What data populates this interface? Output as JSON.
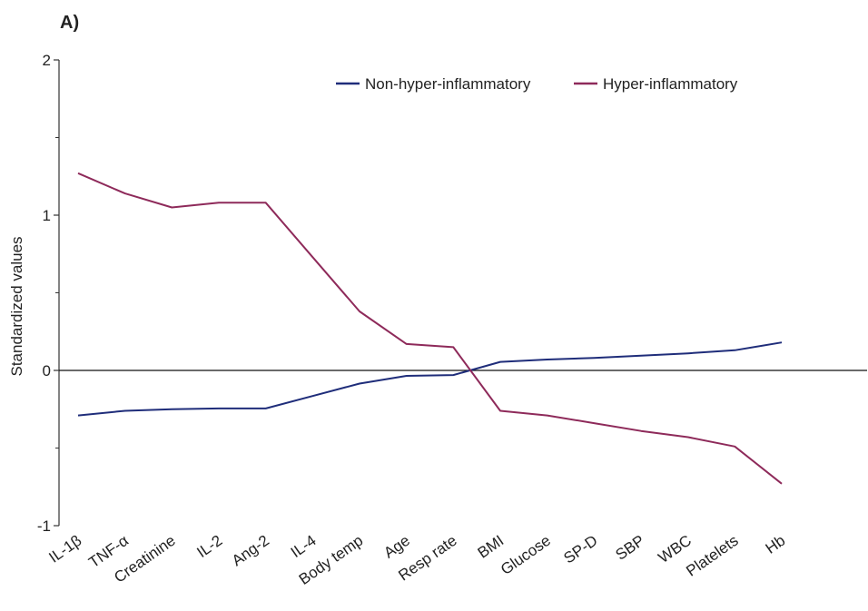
{
  "panel_label": "A)",
  "chart_data": {
    "type": "line",
    "title": "",
    "xlabel": "",
    "ylabel": "Standardized values",
    "ylim": [
      -1,
      2
    ],
    "y_ticks": [
      "2",
      "1",
      "0",
      "-1"
    ],
    "categories": [
      "IL-1β",
      "TNF-α",
      "Creatinine",
      "IL-2",
      "Ang-2",
      "IL-4",
      "Body temp",
      "Age",
      "Resp rate",
      "BMI",
      "Glucose",
      "SP-D",
      "SBP",
      "WBC",
      "Platelets",
      "Hb"
    ],
    "series": [
      {
        "name": "Non-hyper-inflammatory",
        "color": "#1f2d7a",
        "values": [
          -0.29,
          -0.26,
          -0.25,
          -0.245,
          -0.245,
          -0.165,
          -0.085,
          -0.035,
          -0.03,
          0.055,
          0.07,
          0.08,
          0.095,
          0.11,
          0.13,
          0.18
        ]
      },
      {
        "name": "Hyper-inflammatory",
        "color": "#8e2a5a",
        "values": [
          1.27,
          1.14,
          1.05,
          1.08,
          1.08,
          0.73,
          0.38,
          0.17,
          0.15,
          -0.26,
          -0.29,
          -0.34,
          -0.39,
          -0.43,
          -0.49,
          -0.73
        ]
      }
    ],
    "legend_position": "top-right",
    "grid": false
  }
}
